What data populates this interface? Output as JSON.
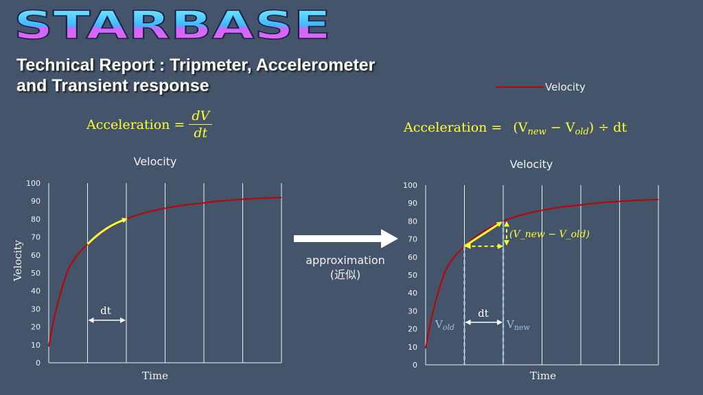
{
  "logo_text": "STARBASE",
  "report_title_line1": "Technical Report :  Tripmeter, Accelerometer",
  "report_title_line2": "and Transient response",
  "legend": {
    "series_name": "Velocity",
    "color": "#c00000"
  },
  "equations": {
    "left_lhs": "Acceleration =",
    "left_num": "dV",
    "left_den": "dt",
    "right_lhs": "Acceleration =",
    "right_open": "(V",
    "right_new": "new",
    "right_minus": " − V",
    "right_old": "old",
    "right_close": ") ÷ dt"
  },
  "approximation": {
    "line1": "approximation",
    "line2": "(近似)"
  },
  "colors": {
    "background": "#44546a",
    "curve": "#c00000",
    "arrow": "#ffff33",
    "guide": "#9dc3e6",
    "equation": "#ffff33"
  },
  "chart_data": [
    {
      "type": "line",
      "title": "Velocity",
      "xlabel": "Time",
      "ylabel": "Velocity",
      "ylim": [
        0,
        100
      ],
      "yticks": [
        "0",
        "10",
        "20",
        "30",
        "40",
        "50",
        "60",
        "70",
        "80",
        "90",
        "100"
      ],
      "grid": "vertical",
      "series": [
        {
          "name": "Velocity",
          "x": [
            0,
            0.5,
            1,
            2,
            3,
            4,
            5,
            6
          ],
          "values": [
            9,
            52,
            66,
            80,
            86,
            89,
            91,
            92
          ]
        }
      ],
      "annotations": {
        "dt_label": "dt"
      }
    },
    {
      "type": "line",
      "title": "Velocity",
      "xlabel": "Time",
      "ylim": [
        0,
        100
      ],
      "yticks": [
        "0",
        "10",
        "20",
        "30",
        "40",
        "50",
        "60",
        "70",
        "80",
        "90",
        "100"
      ],
      "grid": "vertical",
      "series": [
        {
          "name": "Velocity",
          "x": [
            0,
            0.5,
            1,
            2,
            3,
            4,
            5,
            6
          ],
          "values": [
            9,
            52,
            66,
            80,
            86,
            89,
            91,
            92
          ]
        }
      ],
      "annotations": {
        "dt_label": "dt",
        "v_old_label": "V",
        "v_old_sub": "old",
        "v_new_label": "V",
        "v_new_sub": "new",
        "delta_label": "(V_new − V_old)"
      }
    }
  ]
}
